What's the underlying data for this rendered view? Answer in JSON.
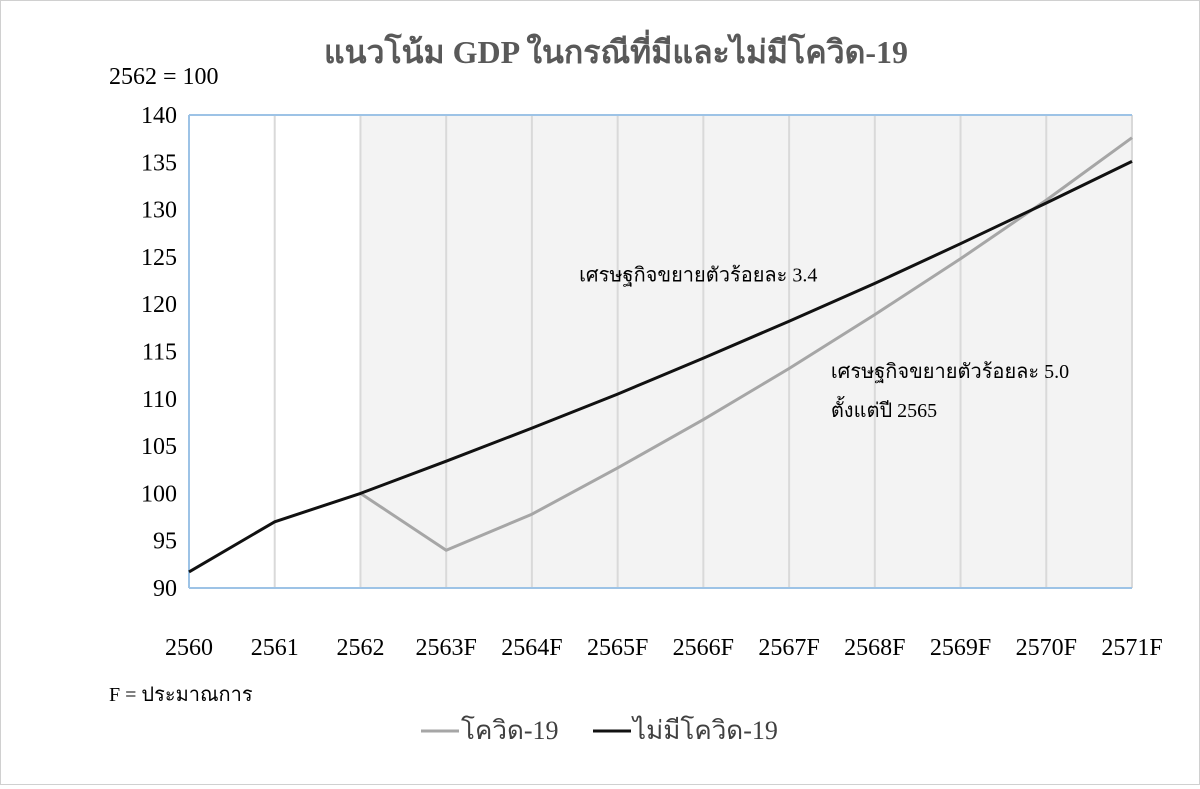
{
  "chart_data": {
    "type": "line",
    "title": "แนวโน้ม GDP ในกรณีที่มีและไม่มีโควิด-19",
    "ylabel": "2562 = 100",
    "xlabel": "",
    "categories": [
      "2560",
      "2561",
      "2562",
      "2563F",
      "2564F",
      "2565F",
      "2566F",
      "2567F",
      "2568F",
      "2569F",
      "2570F",
      "2571F"
    ],
    "ylim": [
      90,
      140
    ],
    "yticks": [
      90,
      95,
      100,
      105,
      110,
      115,
      120,
      125,
      130,
      135,
      140
    ],
    "grid": "vertical",
    "shaded_from_category": "2562",
    "series": [
      {
        "name": "โควิด-19",
        "color": "#a6a6a6",
        "values": [
          null,
          null,
          100,
          94,
          97.8,
          102.7,
          107.8,
          113.2,
          118.9,
          124.8,
          131.0,
          137.6
        ]
      },
      {
        "name": "ไม่มีโควิด-19",
        "color": "#111111",
        "values": [
          91.7,
          97,
          100,
          103.4,
          106.9,
          110.5,
          114.3,
          118.2,
          122.2,
          126.4,
          130.7,
          135.1
        ]
      }
    ],
    "annotations": [
      {
        "text": "เศรษฐกิจขยายตัวร้อยละ 3.4",
        "x": "2567F",
        "y": 122.4
      },
      {
        "text": "เศรษฐกิจขยายตัวร้อยละ 5.0",
        "x": "2568F",
        "y": 112.2
      },
      {
        "text": "ตั้งแต่ปี 2565",
        "x": "2568F",
        "y": 108.1
      }
    ],
    "note": "F = ประมาณการ",
    "legend_position": "bottom-center"
  }
}
